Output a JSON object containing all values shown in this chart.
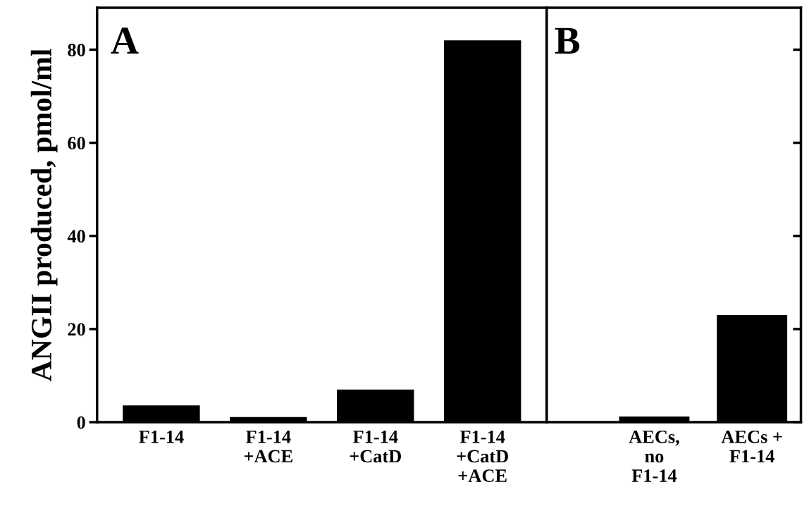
{
  "chart_data": [
    {
      "type": "bar",
      "categories": [
        "F1-14",
        "F1-14\n+ACE",
        "F1-14\n+CatD",
        "F1-14\n+CatD\n+ACE"
      ],
      "values": [
        3.6,
        1.1,
        7,
        82
      ],
      "color": "#000000",
      "ylabel": "ANGII produced, pmol/ml",
      "ylim": [
        0,
        89
      ],
      "yticks": [
        0,
        20,
        40,
        60,
        80
      ],
      "annotations": [
        "A"
      ],
      "grid": false
    },
    {
      "type": "bar",
      "categories": [
        "AECs,\nno\nF1-14",
        "AECs +\nF1-14"
      ],
      "values": [
        1.2,
        23
      ],
      "color": "#000000",
      "ylim": [
        0,
        89
      ],
      "yticks": [
        0,
        20,
        40,
        60,
        80
      ],
      "tick_labels": "x",
      "annotations": [
        "B"
      ],
      "grid": false
    }
  ]
}
